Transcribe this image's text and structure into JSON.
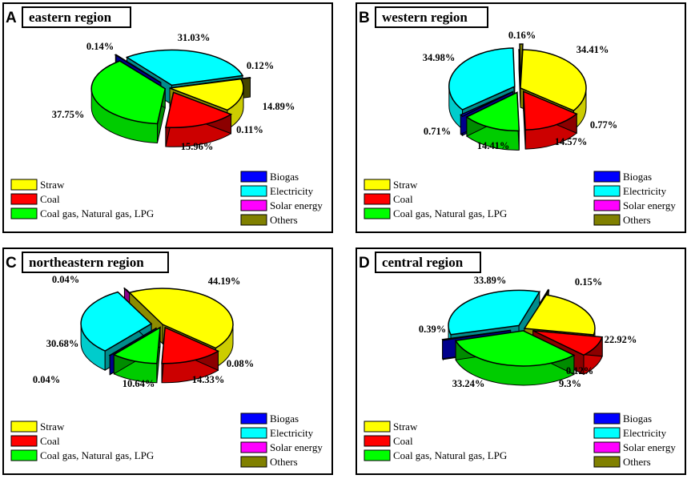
{
  "legend": [
    {
      "key": "straw",
      "label": "Straw",
      "color": "#ffff00"
    },
    {
      "key": "coal",
      "label": "Coal",
      "color": "#ff0000"
    },
    {
      "key": "gas",
      "label": "Coal gas, Natural gas, LPG",
      "color": "#00ff00"
    },
    {
      "key": "biogas",
      "label": "Biogas",
      "color": "#0000ff"
    },
    {
      "key": "electricity",
      "label": "Electricity",
      "color": "#00ffff"
    },
    {
      "key": "solar",
      "label": "Solar energy",
      "color": "#ff00ff"
    },
    {
      "key": "others",
      "label": "Others",
      "color": "#808000"
    }
  ],
  "chart_data": [
    {
      "type": "pie",
      "letter": "A",
      "title": "eastern region",
      "categories": [
        "Straw",
        "Coal",
        "Coal gas, Natural gas, LPG",
        "Biogas",
        "Electricity",
        "Solar energy",
        "Others"
      ],
      "values": [
        14.89,
        15.96,
        37.75,
        0.14,
        31.03,
        0.12,
        0.11
      ],
      "value_labels": [
        "14.89%",
        "15.96%",
        "37.75%",
        "0.14%",
        "31.03%",
        "0.12%",
        "0.11%"
      ]
    },
    {
      "type": "pie",
      "letter": "B",
      "title": "western region",
      "categories": [
        "Straw",
        "Coal",
        "Coal gas, Natural gas, LPG",
        "Biogas",
        "Electricity",
        "Solar energy",
        "Others"
      ],
      "values": [
        34.41,
        14.57,
        14.41,
        0.71,
        34.98,
        0.16,
        0.77
      ],
      "value_labels": [
        "34.41%",
        "14.57%",
        "14.41%",
        "0.71%",
        "34.98%",
        "0.16%",
        "0.77%"
      ]
    },
    {
      "type": "pie",
      "letter": "C",
      "title": "northeastern region",
      "categories": [
        "Straw",
        "Coal",
        "Coal gas, Natural gas, LPG",
        "Biogas",
        "Electricity",
        "Solar energy",
        "Others"
      ],
      "values": [
        44.19,
        14.33,
        10.64,
        0.04,
        30.68,
        0.04,
        0.08
      ],
      "value_labels": [
        "44.19%",
        "14.33%",
        "10.64%",
        "0.04%",
        "30.68%",
        "0.04%",
        "0.08%"
      ]
    },
    {
      "type": "pie",
      "letter": "D",
      "title": "central region",
      "categories": [
        "Straw",
        "Coal",
        "Coal gas, Natural gas, LPG",
        "Biogas",
        "Electricity",
        "Solar energy",
        "Others"
      ],
      "values": [
        22.92,
        9.3,
        33.24,
        0.39,
        33.89,
        0.15,
        0.12
      ],
      "value_labels": [
        "22.92%",
        "9.3%",
        "33.24%",
        "0.39%",
        "33.89%",
        "0.15%",
        "0.12%"
      ]
    }
  ]
}
